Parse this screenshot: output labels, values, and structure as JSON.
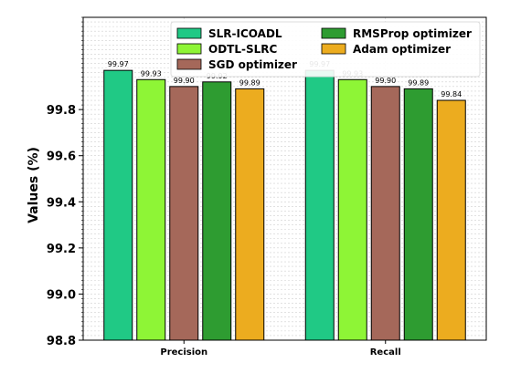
{
  "chart_data": {
    "type": "bar",
    "title": "",
    "xlabel": "",
    "ylabel": "Values (%)",
    "categories": [
      "Precision",
      "Recall"
    ],
    "ylim": [
      98.8,
      100.2
    ],
    "yticks": [
      98.8,
      99.0,
      99.2,
      99.4,
      99.6,
      99.8
    ],
    "grid": true,
    "legend_position": "top-right",
    "series": [
      {
        "name": "SLR-ICOADL",
        "color": "#20c985",
        "values": [
          99.97,
          99.97
        ]
      },
      {
        "name": "ODTL-SLRC",
        "color": "#8ef536",
        "values": [
          99.93,
          99.93
        ]
      },
      {
        "name": "SGD optimizer",
        "color": "#a5685a",
        "values": [
          99.9,
          99.9
        ]
      },
      {
        "name": "RMSProp optimizer",
        "color": "#2e9c31",
        "values": [
          99.92,
          99.89
        ]
      },
      {
        "name": "Adam optimizer",
        "color": "#ecac1f",
        "values": [
          99.89,
          99.84
        ]
      }
    ],
    "data_labels": [
      [
        "99.97",
        "99.93",
        "99.90",
        "99.92",
        "99.89"
      ],
      [
        "99.97",
        "99.93",
        "99.90",
        "99.89",
        "99.84"
      ]
    ]
  }
}
